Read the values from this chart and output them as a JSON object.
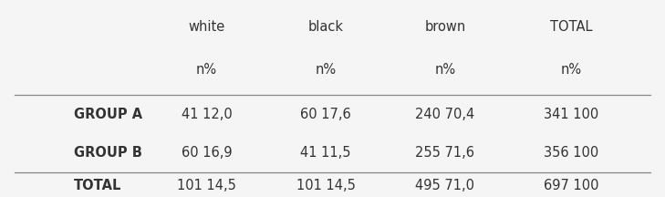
{
  "col_headers_line1": [
    "white",
    "black",
    "brown",
    "TOTAL"
  ],
  "col_headers_line2": [
    "n%",
    "n%",
    "n%",
    "n%"
  ],
  "rows": [
    {
      "label": "GROUP A",
      "values": [
        "41 12,0",
        "60 17,6",
        "240 70,4",
        "341 100"
      ]
    },
    {
      "label": "GROUP B",
      "values": [
        "60 16,9",
        "41 11,5",
        "255 71,6",
        "356 100"
      ]
    },
    {
      "label": "TOTAL",
      "values": [
        "101 14,5",
        "101 14,5",
        "495 71,0",
        "697 100"
      ]
    }
  ],
  "background_color": "#f5f5f5",
  "text_color": "#333333",
  "font_size": 10.5
}
